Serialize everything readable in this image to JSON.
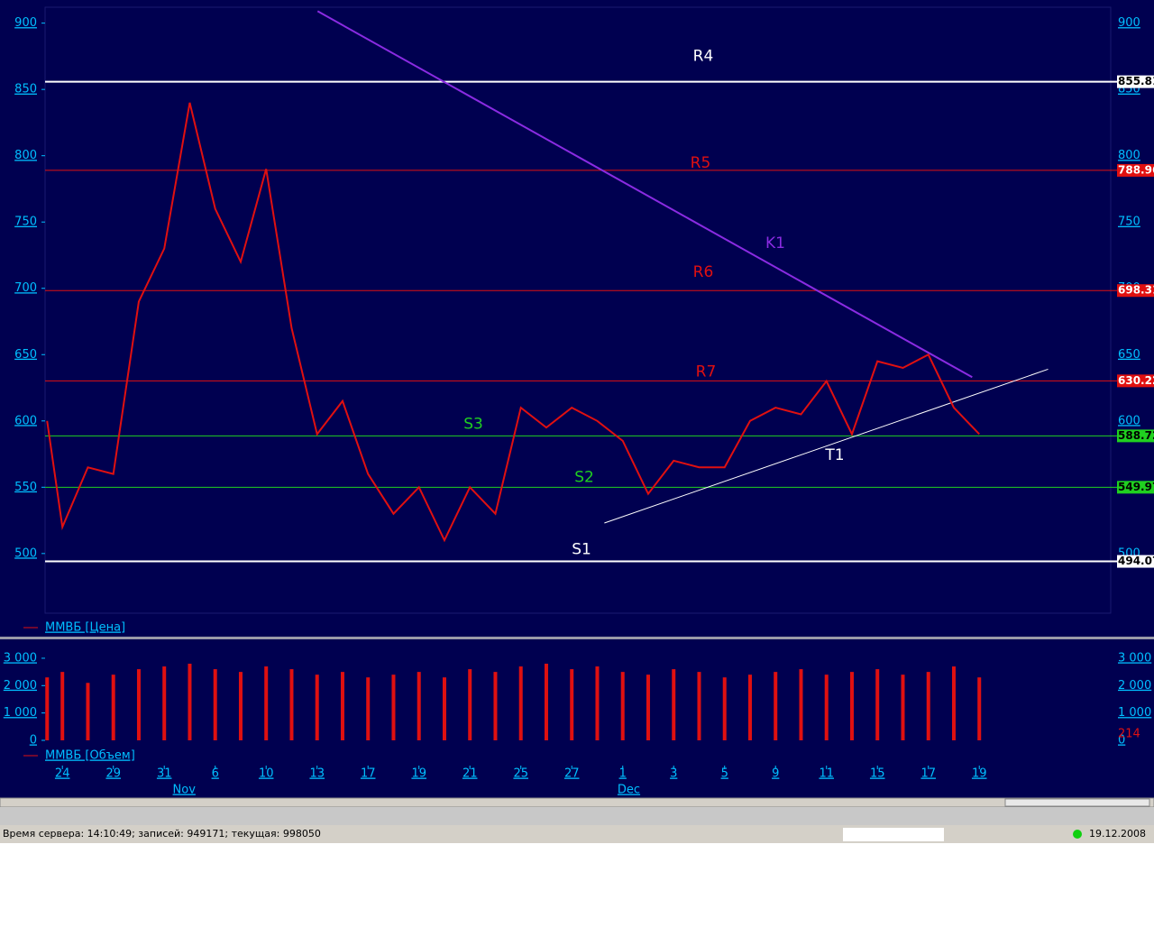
{
  "chart_data": [
    {
      "type": "line",
      "series": [
        {
          "name": "ММВБ [Цена]",
          "color": "#e01010",
          "x": [
            -0.3,
            0,
            0.5,
            1,
            1.5,
            2,
            2.5,
            3,
            3.5,
            4,
            4.5,
            5,
            5.5,
            6,
            6.5,
            7,
            7.5,
            8,
            8.5,
            9,
            9.5,
            10,
            10.5,
            11,
            11.5,
            12,
            12.5,
            13,
            13.5,
            14,
            14.5,
            15,
            15.5,
            16,
            16.5,
            17,
            17.5,
            18
          ],
          "values": [
            600,
            520,
            565,
            560,
            690,
            730,
            840,
            760,
            720,
            790,
            670,
            590,
            615,
            560,
            530,
            550,
            510,
            550,
            530,
            610,
            595,
            610,
            600,
            585,
            545,
            570,
            565,
            565,
            600,
            610,
            605,
            630,
            590,
            645,
            640,
            650,
            610,
            590
          ]
        }
      ],
      "xlim": [
        -0.34,
        20.58
      ],
      "ylim": [
        455,
        912
      ],
      "yticks": [
        500,
        550,
        600,
        650,
        700,
        750,
        800,
        850,
        900
      ],
      "levels": [
        {
          "name": "R4",
          "value": 855.81,
          "color": "#ffffff"
        },
        {
          "name": "R5",
          "value": 788.96,
          "color": "#e01010"
        },
        {
          "name": "R6",
          "value": 698.31,
          "color": "#e01010"
        },
        {
          "name": "R7",
          "value": 630.22,
          "color": "#e01010"
        },
        {
          "name": "S3",
          "value": 588.72,
          "color": "#20d020"
        },
        {
          "name": "S2",
          "value": 549.97,
          "color": "#20d020"
        },
        {
          "name": "S1",
          "value": 494.07,
          "color": "#ffffff"
        }
      ],
      "trendlines": [
        {
          "name": "K1",
          "color": "#8a2be2",
          "x": [
            5.01,
            17.86
          ],
          "values": [
            909,
            633
          ]
        },
        {
          "name": "T1",
          "color": "#ffffff",
          "x": [
            10.64,
            19.35
          ],
          "values": [
            523,
            639
          ]
        }
      ]
    },
    {
      "type": "bar",
      "series": [
        {
          "name": "ММВБ [Объем]",
          "color": "#e01010",
          "x": [
            -0.3,
            0,
            0.5,
            1,
            1.5,
            2,
            2.5,
            3,
            3.5,
            4,
            4.5,
            5,
            5.5,
            6,
            6.5,
            7,
            7.5,
            8,
            8.5,
            9,
            9.5,
            10,
            10.5,
            11,
            11.5,
            12,
            12.5,
            13,
            13.5,
            14,
            14.5,
            15,
            15.5,
            16,
            16.5,
            17,
            17.5,
            18
          ],
          "values": [
            2300,
            2500,
            2100,
            2400,
            2600,
            2700,
            2800,
            2600,
            2500,
            2700,
            2600,
            2400,
            2500,
            2300,
            2400,
            2500,
            2300,
            2600,
            2500,
            2700,
            2800,
            2600,
            2700,
            2500,
            2400,
            2600,
            2500,
            2300,
            2400,
            2500,
            2600,
            2400,
            2500,
            2600,
            2400,
            2500,
            2700,
            2300
          ],
          "current_value": 214
        }
      ],
      "xlim": [
        -0.34,
        20.58
      ],
      "ylim": [
        -165,
        3460
      ],
      "yticks": [
        {
          "value": 0,
          "label": "0"
        },
        {
          "value": 1000,
          "label": "1 000"
        },
        {
          "value": 2000,
          "label": "2 000"
        },
        {
          "value": 3000,
          "label": "3 000"
        }
      ],
      "xticks": [
        {
          "value": 0,
          "label": "24"
        },
        {
          "value": 1,
          "label": "29"
        },
        {
          "value": 2,
          "label": "31"
        },
        {
          "value": 3,
          "label": "6"
        },
        {
          "value": 4,
          "label": "10"
        },
        {
          "value": 5,
          "label": "13"
        },
        {
          "value": 6,
          "label": "17"
        },
        {
          "value": 7,
          "label": "19"
        },
        {
          "value": 8,
          "label": "21"
        },
        {
          "value": 9,
          "label": "25"
        },
        {
          "value": 10,
          "label": "27"
        },
        {
          "value": 11,
          "label": "1"
        },
        {
          "value": 12,
          "label": "3"
        },
        {
          "value": 13,
          "label": "5"
        },
        {
          "value": 14,
          "label": "9"
        },
        {
          "value": 15,
          "label": "11"
        },
        {
          "value": 16,
          "label": "15"
        },
        {
          "value": 17,
          "label": "17"
        },
        {
          "value": 18,
          "label": "19"
        }
      ],
      "month_labels": [
        {
          "value": 2.39,
          "label": "Nov"
        },
        {
          "value": 11.12,
          "label": "Dec"
        }
      ]
    }
  ],
  "status_bar": {
    "server": "Время сервера: 14:10:49; записей: 949171; текущая: 998050",
    "date": "19.12.2008"
  }
}
